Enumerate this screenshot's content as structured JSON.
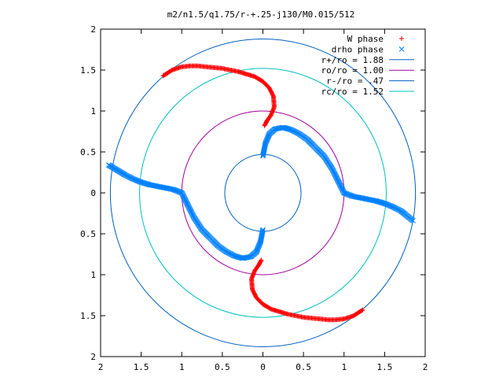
{
  "chart_data": {
    "type": "scatter",
    "title": "m2/n1.5/q1.75/r-+.25-j130/M0.015/512",
    "xlabel": "",
    "ylabel": "",
    "xlim": [
      -2,
      2
    ],
    "ylim": [
      -2,
      2
    ],
    "x_tick_labels": [
      "2",
      "1.5",
      "1",
      "0.5",
      "0",
      "0.5",
      "1",
      "1.5",
      "2"
    ],
    "y_tick_labels": [
      "2",
      "1.5",
      "1",
      "0.5",
      "0",
      "0.5",
      "1",
      "1.5",
      "2"
    ],
    "grid": false,
    "legend_position": "top-right",
    "series": [
      {
        "name": "W phase",
        "marker": "+",
        "color": "#ff0000",
        "points": [
          [
            -1.23,
            1.43
          ],
          [
            -1.18,
            1.46
          ],
          [
            -1.12,
            1.5
          ],
          [
            -1.06,
            1.52
          ],
          [
            -1.0,
            1.54
          ],
          [
            -0.9,
            1.55
          ],
          [
            -0.8,
            1.55
          ],
          [
            -0.7,
            1.54
          ],
          [
            -0.6,
            1.53
          ],
          [
            -0.5,
            1.52
          ],
          [
            -0.4,
            1.5
          ],
          [
            -0.3,
            1.48
          ],
          [
            -0.2,
            1.45
          ],
          [
            -0.1,
            1.42
          ],
          [
            0.0,
            1.36
          ],
          [
            0.08,
            1.28
          ],
          [
            0.13,
            1.18
          ],
          [
            0.14,
            1.05
          ],
          [
            0.1,
            0.95
          ],
          [
            0.05,
            0.88
          ],
          [
            0.02,
            0.82
          ],
          [
            -0.02,
            -0.82
          ],
          [
            -0.05,
            -0.88
          ],
          [
            -0.1,
            -0.95
          ],
          [
            -0.14,
            -1.05
          ],
          [
            -0.13,
            -1.18
          ],
          [
            -0.08,
            -1.28
          ],
          [
            0.0,
            -1.36
          ],
          [
            0.1,
            -1.42
          ],
          [
            0.2,
            -1.45
          ],
          [
            0.3,
            -1.48
          ],
          [
            0.4,
            -1.5
          ],
          [
            0.5,
            -1.52
          ],
          [
            0.6,
            -1.53
          ],
          [
            0.7,
            -1.54
          ],
          [
            0.8,
            -1.55
          ],
          [
            0.9,
            -1.55
          ],
          [
            1.0,
            -1.54
          ],
          [
            1.06,
            -1.52
          ],
          [
            1.12,
            -1.5
          ],
          [
            1.18,
            -1.46
          ],
          [
            1.23,
            -1.43
          ]
        ]
      },
      {
        "name": "drho phase",
        "marker": "x",
        "color": "#0080ff",
        "points": [
          [
            -1.9,
            0.34
          ],
          [
            -1.8,
            0.28
          ],
          [
            -1.7,
            0.22
          ],
          [
            -1.6,
            0.17
          ],
          [
            -1.5,
            0.13
          ],
          [
            -1.4,
            0.1
          ],
          [
            -1.3,
            0.08
          ],
          [
            -1.2,
            0.06
          ],
          [
            -1.1,
            0.04
          ],
          [
            -1.0,
            0.0
          ],
          [
            -0.95,
            -0.1
          ],
          [
            -0.9,
            -0.2
          ],
          [
            -0.85,
            -0.3
          ],
          [
            -0.75,
            -0.45
          ],
          [
            -0.65,
            -0.55
          ],
          [
            -0.55,
            -0.65
          ],
          [
            -0.45,
            -0.72
          ],
          [
            -0.35,
            -0.77
          ],
          [
            -0.25,
            -0.8
          ],
          [
            -0.15,
            -0.78
          ],
          [
            -0.08,
            -0.72
          ],
          [
            -0.03,
            -0.6
          ],
          [
            0.0,
            -0.45
          ],
          [
            0.0,
            0.45
          ],
          [
            0.03,
            0.6
          ],
          [
            0.08,
            0.72
          ],
          [
            0.15,
            0.78
          ],
          [
            0.25,
            0.8
          ],
          [
            0.35,
            0.77
          ],
          [
            0.45,
            0.72
          ],
          [
            0.55,
            0.65
          ],
          [
            0.65,
            0.55
          ],
          [
            0.75,
            0.45
          ],
          [
            0.85,
            0.3
          ],
          [
            0.9,
            0.2
          ],
          [
            0.95,
            0.1
          ],
          [
            1.0,
            0.0
          ],
          [
            1.1,
            -0.04
          ],
          [
            1.2,
            -0.06
          ],
          [
            1.3,
            -0.08
          ],
          [
            1.4,
            -0.1
          ],
          [
            1.5,
            -0.13
          ],
          [
            1.6,
            -0.17
          ],
          [
            1.7,
            -0.22
          ],
          [
            1.8,
            -0.3
          ],
          [
            1.85,
            -0.34
          ]
        ]
      }
    ],
    "circles": [
      {
        "name": "r+/ro = 1.88",
        "radius": 1.88,
        "color": "#0060c0"
      },
      {
        "name": "ro/ro = 1.00",
        "radius": 1.0,
        "color": "#a000a0"
      },
      {
        "name": "r-/ro = .47",
        "radius": 0.47,
        "color": "#0060c0"
      },
      {
        "name": "rc/ro = 1.52",
        "radius": 1.52,
        "color": "#00c0c0"
      }
    ]
  }
}
